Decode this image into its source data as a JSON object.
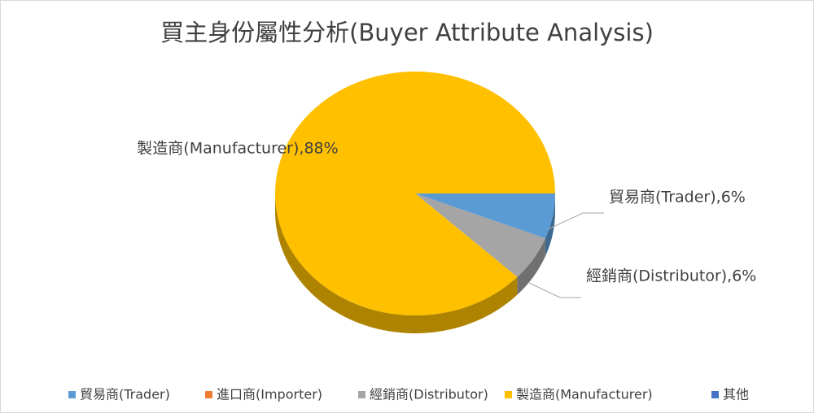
{
  "chart_data": {
    "type": "pie",
    "title": "買主身份屬性分析(Buyer Attribute Analysis)",
    "categories": [
      "貿易商(Trader)",
      "進口商(Importer)",
      "經銷商(Distributor)",
      "製造商(Manufacturer)",
      "其他"
    ],
    "values": [
      6,
      0,
      6,
      88,
      0
    ],
    "value_labels": [
      "貿易商(Trader),6%",
      null,
      "經銷商(Distributor),6%",
      "製造商(Manufacturer),88%",
      null
    ],
    "colors": [
      "#5b9bd5",
      "#ed7d31",
      "#a5a5a5",
      "#ffc000",
      "#4472c4"
    ],
    "legend": "bottom"
  }
}
